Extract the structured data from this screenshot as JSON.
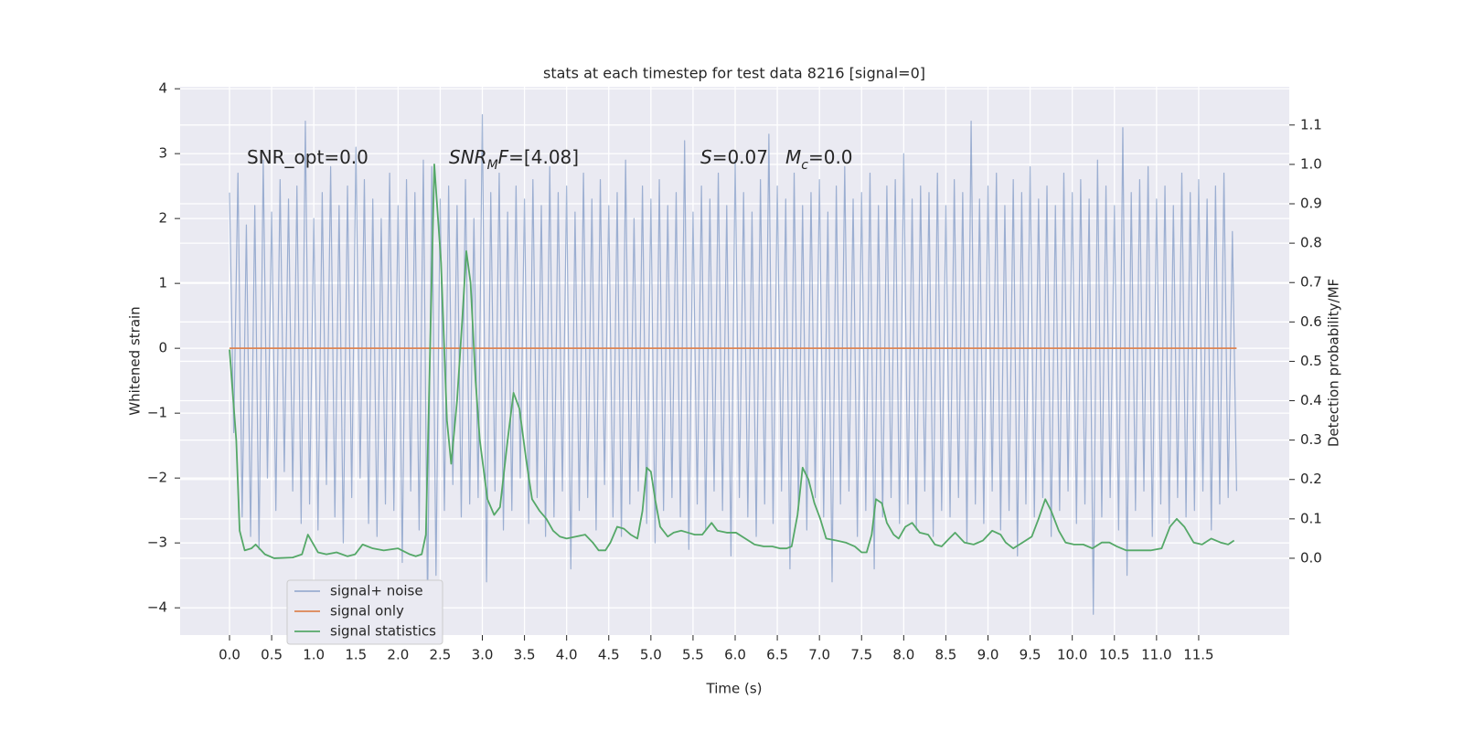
{
  "chart_data": {
    "type": "line",
    "title": "stats at each timestep for test data 8216 [signal=0]",
    "xlabel": "Time (s)",
    "ylabel": "Whitened strain",
    "y2label": "Detection probability/MF",
    "xlim": [
      -0.586,
      12.575
    ],
    "ylim": [
      -4.42,
      4.03
    ],
    "y2lim": [
      -0.195,
      1.197
    ],
    "xticks": [
      {
        "value": 0,
        "label": "0.0"
      },
      0.5,
      {
        "value": 1,
        "label": "1.0"
      },
      1.5,
      {
        "value": 2,
        "label": "2.0"
      },
      2.5,
      {
        "value": 3,
        "label": "3.0"
      },
      3.5,
      {
        "value": 4,
        "label": "4.0"
      },
      4.5,
      {
        "value": 5,
        "label": "5.0"
      },
      5.5,
      {
        "value": 6,
        "label": "6.0"
      },
      6.5,
      {
        "value": 7,
        "label": "7.0"
      },
      7.5,
      {
        "value": 8,
        "label": "8.0"
      },
      8.5,
      {
        "value": 9,
        "label": "9.0"
      },
      9.5,
      {
        "value": 10,
        "label": "10.0"
      },
      10.5,
      {
        "value": 11,
        "label": "11.0"
      },
      11.5
    ],
    "yticks": [
      {
        "value": -4,
        "label": "−4"
      },
      {
        "value": -3,
        "label": "−3"
      },
      {
        "value": -2,
        "label": "−2"
      },
      {
        "value": -1,
        "label": "−1"
      },
      0,
      1,
      2,
      3,
      4
    ],
    "y2ticks": [
      {
        "value": 0,
        "label": "0.0"
      },
      0.1,
      0.2,
      0.3,
      0.4,
      0.5,
      0.6,
      0.7,
      0.8,
      0.9,
      {
        "value": 1,
        "label": "1.0"
      },
      1.1
    ],
    "grid": true,
    "legend": "lower left",
    "annotations": [
      {
        "parts": [
          {
            "text": "SNR_opt=0.0",
            "style": "normal"
          }
        ]
      },
      {
        "parts": [
          {
            "text": "SNR",
            "style": "italic"
          },
          {
            "text": "M",
            "style": "sub"
          },
          {
            "text": "F",
            "style": "italic"
          },
          {
            "text": "=[4.08]",
            "style": "normal"
          }
        ]
      },
      {
        "parts": [
          {
            "text": "S",
            "style": "italic"
          },
          {
            "text": "=0.07",
            "style": "normal"
          }
        ]
      },
      {
        "parts": [
          {
            "text": "M",
            "style": "italic"
          },
          {
            "text": "c",
            "style": "sub"
          },
          {
            "text": "=0.0",
            "style": "normal"
          }
        ]
      }
    ],
    "series": [
      {
        "name": "signal+ noise",
        "color": "#4c72b0",
        "opacity": 0.5,
        "x": [
          0,
          0.05,
          0.1,
          0.15,
          0.2,
          0.25,
          0.3,
          0.35,
          0.4,
          0.45,
          0.5,
          0.55,
          0.6,
          0.65,
          0.7,
          0.75,
          0.8,
          0.85,
          0.9,
          0.95,
          1,
          1.05,
          1.1,
          1.15,
          1.2,
          1.25,
          1.3,
          1.35,
          1.4,
          1.45,
          1.5,
          1.55,
          1.6,
          1.65,
          1.7,
          1.75,
          1.8,
          1.85,
          1.9,
          1.95,
          2,
          2.05,
          2.1,
          2.15,
          2.2,
          2.25,
          2.3,
          2.35,
          2.4,
          2.45,
          2.5,
          2.55,
          2.6,
          2.65,
          2.7,
          2.75,
          2.8,
          2.85,
          2.9,
          2.95,
          3,
          3.05,
          3.1,
          3.15,
          3.2,
          3.25,
          3.3,
          3.35,
          3.4,
          3.45,
          3.5,
          3.55,
          3.6,
          3.65,
          3.7,
          3.75,
          3.8,
          3.85,
          3.9,
          3.95,
          4,
          4.05,
          4.1,
          4.15,
          4.2,
          4.25,
          4.3,
          4.35,
          4.4,
          4.45,
          4.5,
          4.55,
          4.6,
          4.65,
          4.7,
          4.75,
          4.8,
          4.85,
          4.9,
          4.95,
          5,
          5.05,
          5.1,
          5.15,
          5.2,
          5.25,
          5.3,
          5.35,
          5.4,
          5.45,
          5.5,
          5.55,
          5.6,
          5.65,
          5.7,
          5.75,
          5.8,
          5.85,
          5.9,
          5.95,
          6,
          6.05,
          6.1,
          6.15,
          6.2,
          6.25,
          6.3,
          6.35,
          6.4,
          6.45,
          6.5,
          6.55,
          6.6,
          6.65,
          6.7,
          6.75,
          6.8,
          6.85,
          6.9,
          6.95,
          7,
          7.05,
          7.1,
          7.15,
          7.2,
          7.25,
          7.3,
          7.35,
          7.4,
          7.45,
          7.5,
          7.55,
          7.6,
          7.65,
          7.7,
          7.75,
          7.8,
          7.85,
          7.9,
          7.95,
          8,
          8.05,
          8.1,
          8.15,
          8.2,
          8.25,
          8.3,
          8.35,
          8.4,
          8.45,
          8.5,
          8.55,
          8.6,
          8.65,
          8.7,
          8.75,
          8.8,
          8.85,
          8.9,
          8.95,
          9,
          9.05,
          9.1,
          9.15,
          9.2,
          9.25,
          9.3,
          9.35,
          9.4,
          9.45,
          9.5,
          9.55,
          9.6,
          9.65,
          9.7,
          9.75,
          9.8,
          9.85,
          9.9,
          9.95,
          10,
          10.05,
          10.1,
          10.15,
          10.2,
          10.25,
          10.3,
          10.35,
          10.4,
          10.45,
          10.5,
          10.55,
          10.6,
          10.65,
          10.7,
          10.75,
          10.8,
          10.85,
          10.9,
          10.95,
          11,
          11.05,
          11.1,
          11.15,
          11.2,
          11.25,
          11.3,
          11.35,
          11.4,
          11.45,
          11.5,
          11.55,
          11.6,
          11.65,
          11.7,
          11.75,
          11.8,
          11.85,
          11.9,
          11.95
        ],
        "values": [
          2.4,
          -1.3,
          2.7,
          -2.6,
          1.9,
          -2.9,
          2.2,
          -3.1,
          2.9,
          -2.0,
          2.1,
          -2.5,
          2.6,
          -1.9,
          2.3,
          -2.2,
          2.5,
          -2.7,
          3.5,
          -2.4,
          2.0,
          -2.8,
          2.4,
          -2.1,
          2.8,
          -2.6,
          2.2,
          -3.0,
          2.5,
          -2.3,
          3.1,
          -2.0,
          2.6,
          -2.7,
          2.3,
          -2.9,
          2.0,
          -2.4,
          2.7,
          -2.5,
          2.2,
          -3.3,
          2.6,
          -2.2,
          2.4,
          -2.8,
          2.9,
          -4.0,
          2.8,
          -3.5,
          2.3,
          -2.5,
          2.5,
          -2.1,
          2.2,
          -2.6,
          2.6,
          -2.4,
          2.0,
          -2.3,
          3.6,
          -3.6,
          2.4,
          -2.2,
          2.7,
          -2.8,
          2.1,
          -2.5,
          2.5,
          -2.0,
          2.3,
          -2.7,
          2.6,
          -2.3,
          2.2,
          -2.9,
          2.8,
          -2.6,
          2.4,
          -2.2,
          2.5,
          -3.4,
          2.1,
          -2.5,
          2.7,
          -2.3,
          2.3,
          -2.8,
          2.6,
          -2.1,
          2.2,
          -2.6,
          2.4,
          -2.9,
          2.9,
          -2.4,
          2.0,
          -2.2,
          2.5,
          -2.7,
          2.3,
          -3.0,
          2.6,
          -2.5,
          2.2,
          -2.3,
          2.4,
          -2.6,
          3.2,
          -3.1,
          2.1,
          -2.4,
          2.5,
          -2.8,
          2.3,
          -2.2,
          2.7,
          -2.5,
          2.2,
          -3.2,
          2.9,
          -2.3,
          2.4,
          -2.6,
          2.1,
          -2.9,
          2.6,
          -2.4,
          3.3,
          -2.7,
          2.5,
          -2.2,
          2.3,
          -3.4,
          2.7,
          -2.5,
          2.2,
          -2.8,
          2.4,
          -2.3,
          2.6,
          -2.6,
          2.1,
          -3.6,
          2.5,
          -2.4,
          2.8,
          -2.2,
          2.3,
          -2.9,
          2.4,
          -2.5,
          2.7,
          -3.4,
          2.2,
          -2.6,
          2.5,
          -2.3,
          2.6,
          -2.7,
          3.0,
          -2.4,
          2.3,
          -2.8,
          2.5,
          -2.2,
          2.4,
          -2.9,
          2.7,
          -2.5,
          2.2,
          -2.6,
          2.6,
          -2.3,
          2.4,
          -3.0,
          3.5,
          -2.4,
          2.3,
          -2.7,
          2.5,
          -2.2,
          2.7,
          -2.8,
          2.2,
          -2.5,
          2.6,
          -3.2,
          2.4,
          -2.4,
          2.8,
          -2.6,
          2.3,
          -2.3,
          2.5,
          -2.9,
          2.2,
          -2.5,
          2.7,
          -2.2,
          2.4,
          -2.7,
          2.6,
          -2.4,
          2.3,
          -4.1,
          2.9,
          -2.6,
          2.5,
          -2.3,
          2.2,
          -2.8,
          3.4,
          -3.5,
          2.4,
          -2.5,
          2.6,
          -2.2,
          2.8,
          -2.9,
          2.3,
          -2.4,
          2.5,
          -2.7,
          2.2,
          -2.3,
          2.7,
          -2.6,
          2.4,
          -2.5,
          2.6,
          -2.2,
          2.3,
          -2.8,
          2.5,
          -2.4,
          2.7,
          -2.3,
          1.8,
          -2.2
        ]
      },
      {
        "name": "signal only",
        "color": "#dd8452",
        "x": [
          0,
          11.95
        ],
        "values": [
          0,
          0
        ]
      },
      {
        "name": "signal statistics",
        "color": "#55a868",
        "axis": "y2",
        "x": [
          0,
          0.08,
          0.12,
          0.18,
          0.26,
          0.31,
          0.42,
          0.53,
          0.75,
          0.86,
          0.93,
          1.05,
          1.15,
          1.27,
          1.4,
          1.49,
          1.58,
          1.7,
          1.83,
          2.0,
          2.14,
          2.21,
          2.28,
          2.33,
          2.43,
          2.51,
          2.58,
          2.63,
          2.7,
          2.76,
          2.81,
          2.86,
          2.92,
          2.97,
          3.06,
          3.14,
          3.21,
          3.3,
          3.37,
          3.44,
          3.52,
          3.59,
          3.68,
          3.76,
          3.84,
          3.92,
          4.0,
          4.11,
          4.22,
          4.31,
          4.38,
          4.46,
          4.52,
          4.6,
          4.68,
          4.76,
          4.84,
          4.9,
          4.95,
          5.0,
          5.05,
          5.11,
          5.2,
          5.27,
          5.36,
          5.44,
          5.52,
          5.61,
          5.72,
          5.79,
          5.9,
          6.01,
          6.12,
          6.23,
          6.34,
          6.44,
          6.53,
          6.61,
          6.67,
          6.74,
          6.8,
          6.87,
          6.94,
          7.01,
          7.08,
          7.2,
          7.31,
          7.42,
          7.5,
          7.56,
          7.62,
          7.67,
          7.74,
          7.8,
          7.88,
          7.94,
          8.02,
          8.1,
          8.19,
          8.29,
          8.37,
          8.45,
          8.54,
          8.61,
          8.72,
          8.83,
          8.94,
          9.05,
          9.15,
          9.21,
          9.3,
          9.41,
          9.52,
          9.6,
          9.68,
          9.75,
          9.84,
          9.92,
          10.02,
          10.13,
          10.24,
          10.35,
          10.44,
          10.53,
          10.64,
          10.78,
          10.93,
          11.06,
          11.16,
          11.24,
          11.33,
          11.44,
          11.54,
          11.65,
          11.76,
          11.85,
          11.92
        ],
        "values": [
          0.53,
          0.3,
          0.07,
          0.02,
          0.025,
          0.035,
          0.01,
          0,
          0.002,
          0.01,
          0.06,
          0.015,
          0.01,
          0.015,
          0.005,
          0.01,
          0.035,
          0.025,
          0.02,
          0.025,
          0.01,
          0.005,
          0.01,
          0.06,
          1.0,
          0.75,
          0.35,
          0.24,
          0.4,
          0.6,
          0.78,
          0.7,
          0.45,
          0.3,
          0.15,
          0.11,
          0.13,
          0.3,
          0.42,
          0.38,
          0.25,
          0.15,
          0.12,
          0.1,
          0.07,
          0.055,
          0.05,
          0.055,
          0.06,
          0.04,
          0.02,
          0.02,
          0.04,
          0.08,
          0.075,
          0.06,
          0.05,
          0.12,
          0.23,
          0.22,
          0.15,
          0.08,
          0.055,
          0.065,
          0.07,
          0.065,
          0.06,
          0.06,
          0.09,
          0.07,
          0.065,
          0.065,
          0.05,
          0.035,
          0.03,
          0.03,
          0.025,
          0.025,
          0.03,
          0.11,
          0.23,
          0.2,
          0.14,
          0.1,
          0.05,
          0.045,
          0.04,
          0.03,
          0.015,
          0.015,
          0.06,
          0.15,
          0.14,
          0.09,
          0.06,
          0.05,
          0.08,
          0.09,
          0.065,
          0.06,
          0.035,
          0.03,
          0.05,
          0.065,
          0.04,
          0.035,
          0.045,
          0.07,
          0.06,
          0.04,
          0.025,
          0.04,
          0.055,
          0.1,
          0.15,
          0.12,
          0.07,
          0.04,
          0.035,
          0.035,
          0.025,
          0.04,
          0.04,
          0.03,
          0.02,
          0.02,
          0.02,
          0.025,
          0.08,
          0.1,
          0.08,
          0.04,
          0.035,
          0.05,
          0.04,
          0.035,
          0.045
        ]
      }
    ]
  }
}
